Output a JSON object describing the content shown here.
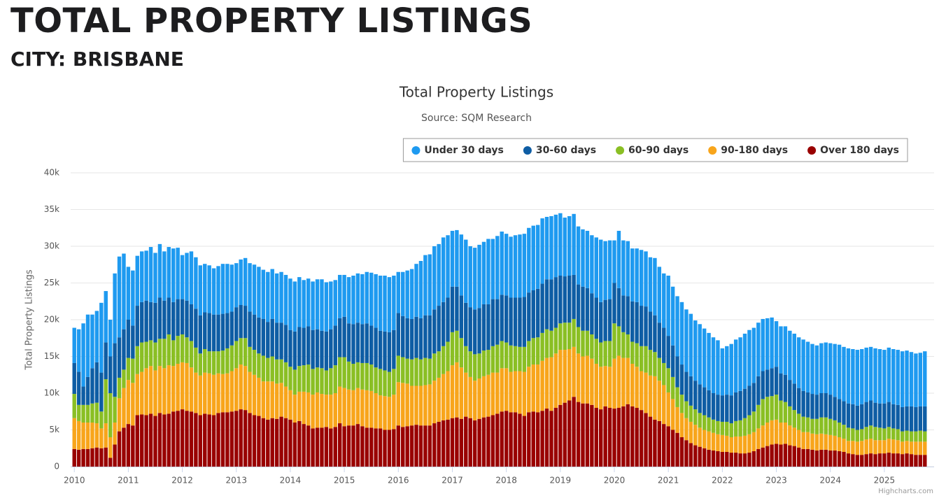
{
  "page_title": "TOTAL PROPERTY LISTINGS",
  "page_subtitle": "CITY: BRISBANE",
  "chart_data": {
    "type": "stacked-bar",
    "title": "Total Property Listings",
    "subtitle": "Source: SQM Research",
    "y_label": "Total Property Listings",
    "credits": "Highcharts.com",
    "grid": true,
    "legend": "top-right",
    "ylim": [
      0,
      40000
    ],
    "yticks": [
      {
        "value": 0,
        "label": "0"
      },
      {
        "value": 5000,
        "label": "5k"
      },
      {
        "value": 10000,
        "label": "10k"
      },
      {
        "value": 15000,
        "label": "15k"
      },
      {
        "value": 20000,
        "label": "20k"
      },
      {
        "value": 25000,
        "label": "25k"
      },
      {
        "value": 30000,
        "label": "30k"
      },
      {
        "value": 35000,
        "label": "35k"
      },
      {
        "value": 40000,
        "label": "40k"
      }
    ],
    "categories": [
      "2010",
      null,
      null,
      null,
      null,
      null,
      null,
      null,
      null,
      null,
      null,
      null,
      "2011",
      null,
      null,
      null,
      null,
      null,
      null,
      null,
      null,
      null,
      null,
      null,
      "2012",
      null,
      null,
      null,
      null,
      null,
      null,
      null,
      null,
      null,
      null,
      null,
      "2013",
      null,
      null,
      null,
      null,
      null,
      null,
      null,
      null,
      null,
      null,
      null,
      "2014",
      null,
      null,
      null,
      null,
      null,
      null,
      null,
      null,
      null,
      null,
      null,
      "2015",
      null,
      null,
      null,
      null,
      null,
      null,
      null,
      null,
      null,
      null,
      null,
      "2016",
      null,
      null,
      null,
      null,
      null,
      null,
      null,
      null,
      null,
      null,
      null,
      "2017",
      null,
      null,
      null,
      null,
      null,
      null,
      null,
      null,
      null,
      null,
      null,
      "2018",
      null,
      null,
      null,
      null,
      null,
      null,
      null,
      null,
      null,
      null,
      null,
      "2019",
      null,
      null,
      null,
      null,
      null,
      null,
      null,
      null,
      null,
      null,
      null,
      "2020",
      null,
      null,
      null,
      null,
      null,
      null,
      null,
      null,
      null,
      null,
      null,
      "2021",
      null,
      null,
      null,
      null,
      null,
      null,
      null,
      null,
      null,
      null,
      null,
      "2022",
      null,
      null,
      null,
      null,
      null,
      null,
      null,
      null,
      null,
      null,
      null,
      "2023",
      null,
      null,
      null,
      null,
      null,
      null,
      null,
      null,
      null,
      null,
      null,
      "2024",
      null,
      null,
      null,
      null,
      null,
      null,
      null,
      null,
      null,
      null,
      null,
      "2025",
      null,
      null,
      null,
      null,
      null,
      null,
      null,
      null,
      null
    ],
    "series": [
      {
        "name": "Under 30 days",
        "color": "#1e9af0",
        "values": [
          4800,
          5800,
          8600,
          8500,
          7300,
          7000,
          9500,
          7000,
          5000,
          9500,
          11000,
          10300,
          7200,
          7500,
          6800,
          6900,
          6800,
          7500,
          6800,
          7300,
          6700,
          6900,
          7300,
          7000,
          6000,
          6500,
          7200,
          7000,
          6800,
          6600,
          6500,
          6300,
          6600,
          6800,
          6700,
          6400,
          6000,
          6200,
          6500,
          6600,
          6800,
          6900,
          6700,
          6800,
          6800,
          6700,
          6900,
          6800,
          7000,
          6800,
          6800,
          6500,
          6500,
          6600,
          6800,
          7000,
          6700,
          6500,
          6200,
          5900,
          5700,
          6300,
          6600,
          6700,
          6800,
          7000,
          7200,
          7300,
          7500,
          7600,
          7500,
          7400,
          5600,
          6000,
          6500,
          6800,
          7200,
          7800,
          8200,
          8300,
          8600,
          8400,
          8800,
          8500,
          7600,
          7700,
          8300,
          8600,
          8300,
          8400,
          8600,
          8500,
          8900,
          8200,
          8600,
          8600,
          8400,
          8300,
          8500,
          8600,
          8600,
          8800,
          8800,
          8700,
          8900,
          8500,
          8600,
          8500,
          8500,
          8000,
          8100,
          8300,
          7900,
          7800,
          7800,
          7900,
          8200,
          8500,
          8000,
          8000,
          5800,
          7800,
          7500,
          7500,
          7200,
          7300,
          7600,
          7500,
          7400,
          7800,
          7600,
          7400,
          8200,
          8000,
          8200,
          8500,
          8500,
          8500,
          8200,
          8200,
          8000,
          7800,
          7600,
          7400,
          6400,
          6600,
          7000,
          7200,
          7300,
          7500,
          7600,
          7500,
          7300,
          7100,
          7000,
          6900,
          6200,
          6400,
          6600,
          6700,
          6800,
          6900,
          7000,
          6900,
          6800,
          6700,
          6800,
          6900,
          7000,
          7200,
          7400,
          7400,
          7500,
          7500,
          7600,
          7500,
          7400,
          7300,
          7400,
          7400,
          7300,
          7400,
          7500,
          7500,
          7600,
          7600,
          7400,
          7300,
          7300,
          7500
        ]
      },
      {
        "name": "30-60 days",
        "color": "#0e5da4",
        "values": [
          4200,
          4500,
          2500,
          3800,
          4800,
          5500,
          5300,
          5000,
          5000,
          7300,
          5500,
          5500,
          5200,
          4500,
          5500,
          5500,
          5600,
          5200,
          5400,
          5600,
          5200,
          5000,
          5200,
          5000,
          4800,
          5000,
          5000,
          5300,
          5200,
          5000,
          5200,
          5000,
          5000,
          5000,
          4800,
          4600,
          4600,
          4500,
          4400,
          4800,
          4800,
          4900,
          5000,
          4900,
          5100,
          5000,
          5000,
          5100,
          5000,
          5200,
          5300,
          5100,
          5200,
          5300,
          5200,
          5100,
          5300,
          5300,
          5400,
          5300,
          5500,
          5200,
          5400,
          5400,
          5300,
          5400,
          5300,
          5400,
          5200,
          5300,
          5400,
          5300,
          5800,
          5600,
          5500,
          5500,
          5600,
          5600,
          5800,
          5900,
          6000,
          6200,
          6000,
          6000,
          6200,
          6000,
          5800,
          5900,
          6000,
          6100,
          6200,
          6300,
          6200,
          6400,
          6200,
          6300,
          6400,
          6500,
          6600,
          6700,
          6800,
          6600,
          6500,
          6600,
          6700,
          6800,
          7000,
          6900,
          6500,
          6300,
          6400,
          6000,
          5800,
          6000,
          5800,
          5600,
          5600,
          5500,
          5600,
          5700,
          5500,
          5200,
          5000,
          5200,
          5500,
          5600,
          5500,
          5400,
          5200,
          5000,
          4800,
          4800,
          4400,
          4300,
          4200,
          4100,
          4000,
          4000,
          3900,
          3900,
          3800,
          3700,
          3600,
          3600,
          3600,
          3700,
          3800,
          3900,
          4000,
          4000,
          4000,
          3900,
          3900,
          3800,
          3700,
          3800,
          3800,
          3700,
          3700,
          3600,
          3600,
          3500,
          3500,
          3400,
          3400,
          3300,
          3300,
          3300,
          3300,
          3200,
          3200,
          3200,
          3300,
          3300,
          3300,
          3400,
          3400,
          3400,
          3300,
          3300,
          3400,
          3400,
          3300,
          3300,
          3300,
          3300,
          3400,
          3300,
          3300,
          3400
        ]
      },
      {
        "name": "60-90 days",
        "color": "#8abf24",
        "values": [
          3300,
          2200,
          2400,
          2400,
          2600,
          2800,
          2300,
          6000,
          6000,
          3500,
          2800,
          2500,
          3000,
          3300,
          3800,
          4000,
          3600,
          3500,
          3800,
          3700,
          4000,
          4200,
          3500,
          3800,
          3800,
          3500,
          3600,
          3400,
          3000,
          3200,
          3000,
          3200,
          3000,
          3200,
          3400,
          3500,
          3700,
          3600,
          3800,
          3400,
          3400,
          3300,
          3500,
          3200,
          3400,
          3300,
          3200,
          3300,
          3200,
          3400,
          3500,
          3600,
          3800,
          3500,
          3400,
          3500,
          3300,
          3600,
          3800,
          4000,
          4200,
          3800,
          3600,
          3500,
          3600,
          3700,
          3600,
          3500,
          3600,
          3500,
          3400,
          3500,
          3600,
          3500,
          3400,
          3600,
          3800,
          3600,
          3700,
          3500,
          3700,
          3600,
          3800,
          4000,
          4500,
          4300,
          4000,
          3600,
          3500,
          3600,
          3400,
          3500,
          3400,
          3600,
          3800,
          3700,
          3500,
          3600,
          3400,
          3300,
          3400,
          3500,
          3600,
          3700,
          3800,
          3900,
          3600,
          3500,
          3600,
          3700,
          3600,
          3800,
          3600,
          3500,
          3400,
          3300,
          3400,
          3300,
          3400,
          3500,
          4800,
          4000,
          3500,
          3200,
          3000,
          3200,
          3400,
          3600,
          3500,
          3300,
          3100,
          3000,
          3300,
          3000,
          2700,
          2500,
          2300,
          2200,
          2100,
          2000,
          2000,
          1900,
          1800,
          1800,
          1800,
          1900,
          1900,
          2100,
          2200,
          2400,
          2600,
          2800,
          3200,
          3600,
          3500,
          3300,
          3400,
          3000,
          2800,
          2600,
          2400,
          2200,
          2100,
          2000,
          2000,
          2100,
          2200,
          2300,
          2200,
          2100,
          2000,
          1900,
          1800,
          1700,
          1600,
          1600,
          1700,
          1800,
          1800,
          1700,
          1600,
          1600,
          1500,
          1500,
          1400,
          1400,
          1400,
          1400,
          1500,
          1400
        ]
      },
      {
        "name": "90-180 days",
        "color": "#f8a51b",
        "values": [
          4200,
          3900,
          3600,
          3600,
          3500,
          3300,
          2700,
          3300,
          2800,
          3000,
          4500,
          5400,
          6000,
          5800,
          5600,
          5800,
          6400,
          6500,
          6200,
          6400,
          6300,
          6600,
          6200,
          6400,
          6400,
          6500,
          6000,
          5500,
          5400,
          5600,
          5600,
          5500,
          5400,
          5200,
          5300,
          5500,
          5800,
          6100,
          6000,
          5600,
          5500,
          5200,
          5000,
          5200,
          5000,
          4800,
          4600,
          4300,
          4000,
          3800,
          4000,
          4400,
          4500,
          4600,
          4800,
          4600,
          4400,
          4600,
          4600,
          5000,
          5200,
          4900,
          4800,
          4900,
          5000,
          5100,
          5000,
          4800,
          4500,
          4600,
          4500,
          4700,
          5900,
          6000,
          5800,
          5400,
          5300,
          5400,
          5500,
          5600,
          5800,
          6000,
          6300,
          6600,
          7200,
          7500,
          7000,
          6000,
          5600,
          5400,
          5500,
          5600,
          5700,
          5800,
          5600,
          5900,
          5800,
          5500,
          5600,
          5800,
          6000,
          6200,
          6400,
          6500,
          6800,
          6900,
          7300,
          7400,
          7500,
          7200,
          7000,
          6800,
          6600,
          6400,
          6500,
          6300,
          6000,
          5800,
          5500,
          5600,
          6800,
          7100,
          6600,
          6300,
          5800,
          5600,
          5300,
          5500,
          5600,
          5900,
          5500,
          5300,
          4600,
          4200,
          3500,
          3300,
          3000,
          2900,
          2800,
          2600,
          2500,
          2500,
          2400,
          2300,
          2300,
          2200,
          2100,
          2200,
          2300,
          2400,
          2500,
          2600,
          2800,
          3000,
          3200,
          3300,
          3300,
          3000,
          2900,
          2700,
          2500,
          2400,
          2300,
          2300,
          2200,
          2200,
          2200,
          2100,
          2100,
          2000,
          1900,
          1800,
          1700,
          1800,
          1800,
          1900,
          2000,
          2000,
          1900,
          1800,
          1800,
          1900,
          1900,
          1800,
          1700,
          1700,
          1700,
          1800,
          1800,
          1800
        ]
      },
      {
        "name": "Over 180 days",
        "color": "#990000",
        "values": [
          2400,
          2300,
          2400,
          2400,
          2500,
          2600,
          2500,
          2600,
          1200,
          3000,
          4800,
          5300,
          5800,
          5600,
          7000,
          7100,
          7000,
          7200,
          6900,
          7300,
          7100,
          7200,
          7500,
          7600,
          7800,
          7600,
          7500,
          7300,
          7000,
          7200,
          7100,
          7000,
          7300,
          7400,
          7400,
          7500,
          7600,
          7800,
          7700,
          7300,
          7000,
          6900,
          6600,
          6400,
          6600,
          6500,
          6800,
          6600,
          6400,
          6000,
          6200,
          5800,
          5600,
          5200,
          5300,
          5300,
          5400,
          5200,
          5400,
          5900,
          5500,
          5600,
          5600,
          5800,
          5500,
          5300,
          5300,
          5200,
          5200,
          5000,
          5000,
          5100,
          5600,
          5400,
          5500,
          5600,
          5700,
          5600,
          5600,
          5600,
          5900,
          6100,
          6300,
          6400,
          6600,
          6700,
          6500,
          6800,
          6600,
          6300,
          6500,
          6700,
          6800,
          7000,
          7200,
          7500,
          7600,
          7400,
          7400,
          7200,
          6900,
          7400,
          7500,
          7400,
          7600,
          7900,
          7600,
          8000,
          8400,
          8700,
          9000,
          9500,
          8800,
          8600,
          8600,
          8400,
          8000,
          7800,
          8200,
          8000,
          7900,
          8000,
          8200,
          8500,
          8200,
          8000,
          7700,
          7300,
          6800,
          6400,
          6200,
          5800,
          5500,
          5000,
          4600,
          4000,
          3600,
          3200,
          2900,
          2700,
          2500,
          2300,
          2200,
          2100,
          2000,
          2000,
          1900,
          1900,
          1800,
          1800,
          1900,
          2100,
          2400,
          2600,
          2800,
          3000,
          3100,
          3000,
          3100,
          2900,
          2800,
          2600,
          2400,
          2400,
          2300,
          2200,
          2300,
          2300,
          2200,
          2200,
          2100,
          2000,
          1800,
          1700,
          1600,
          1600,
          1700,
          1800,
          1700,
          1800,
          1800,
          1900,
          1800,
          1800,
          1700,
          1800,
          1700,
          1600,
          1600,
          1600
        ]
      }
    ]
  }
}
